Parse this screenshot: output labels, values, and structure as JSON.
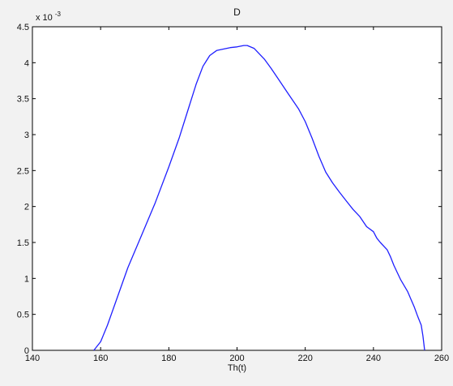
{
  "chart_data": {
    "type": "line",
    "title": "D",
    "xlabel": "Th(t)",
    "ylabel": "",
    "y_multiplier_label": "x 10",
    "y_multiplier_exponent": "-3",
    "xlim": [
      140,
      260
    ],
    "ylim": [
      0,
      4.5
    ],
    "x_ticks": [
      140,
      160,
      180,
      200,
      220,
      240,
      260
    ],
    "x_tick_labels": [
      "140",
      "160",
      "180",
      "200",
      "220",
      "240",
      "260"
    ],
    "y_ticks": [
      0,
      0.5,
      1,
      1.5,
      2,
      2.5,
      3,
      3.5,
      4,
      4.5
    ],
    "y_tick_labels": [
      "0",
      "0.5",
      "1",
      "1.5",
      "2",
      "2.5",
      "3",
      "3.5",
      "4",
      "4.5"
    ],
    "grid": false,
    "legend": "none",
    "series": [
      {
        "color": "#1f1fff",
        "x": [
          158,
          160,
          162,
          165,
          168,
          172,
          176,
          180,
          183,
          186,
          188,
          190,
          192,
          194,
          196,
          198,
          200,
          202,
          203,
          205,
          208,
          210,
          212,
          215,
          218,
          220,
          222,
          224,
          226,
          228,
          230,
          232,
          234,
          236,
          238,
          240,
          241,
          242,
          244,
          245,
          246,
          248,
          250,
          252,
          253,
          254,
          254.5,
          255
        ],
        "y": [
          0,
          0.12,
          0.35,
          0.75,
          1.15,
          1.6,
          2.05,
          2.55,
          2.95,
          3.4,
          3.7,
          3.95,
          4.1,
          4.17,
          4.19,
          4.21,
          4.22,
          4.24,
          4.24,
          4.2,
          4.05,
          3.92,
          3.78,
          3.57,
          3.36,
          3.18,
          2.95,
          2.7,
          2.48,
          2.33,
          2.2,
          2.08,
          1.96,
          1.86,
          1.72,
          1.65,
          1.56,
          1.5,
          1.4,
          1.3,
          1.18,
          0.98,
          0.82,
          0.6,
          0.47,
          0.35,
          0.2,
          0
        ]
      }
    ]
  }
}
